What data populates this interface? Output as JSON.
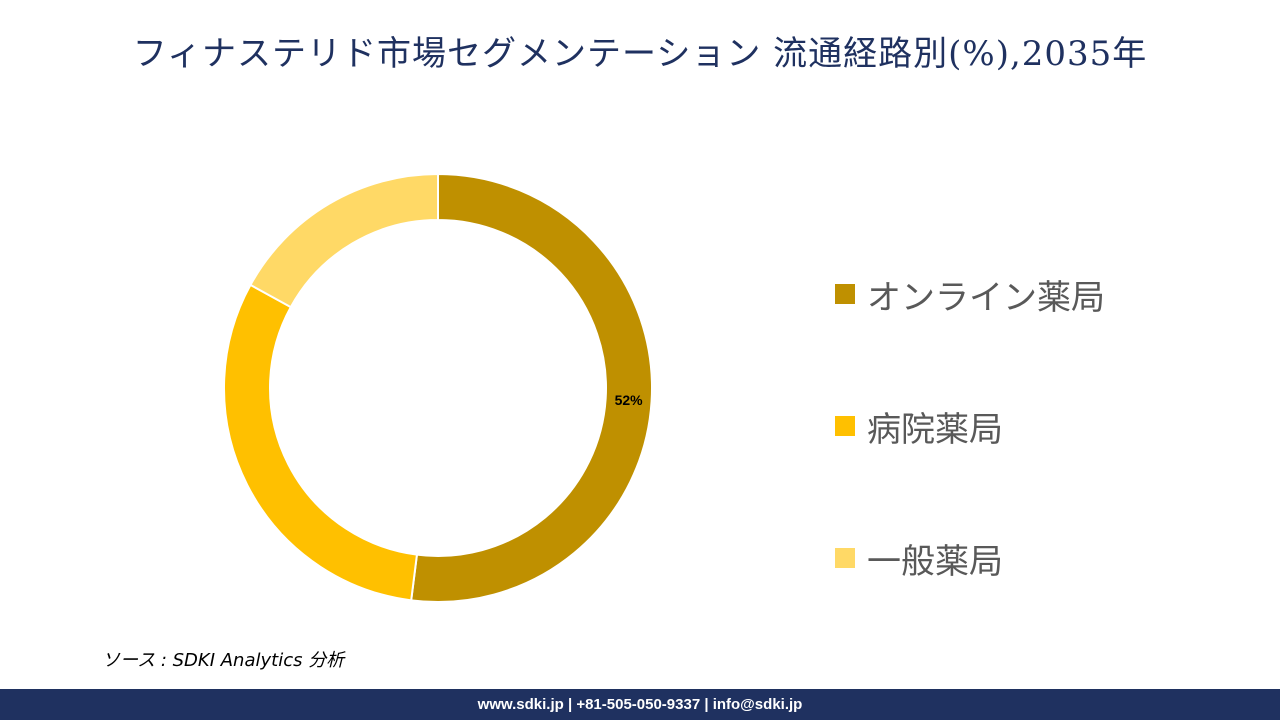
{
  "header": {
    "title": "フィナステリド市場セグメンテーション 流通経路別(%),2035年"
  },
  "chart_data": {
    "type": "pie",
    "style": "donut",
    "categories": [
      "オンライン薬局",
      "病院薬局",
      "一般薬局"
    ],
    "values": [
      52,
      31,
      17
    ],
    "colors": [
      "#bf9000",
      "#ffc000",
      "#ffd966"
    ],
    "data_labels": [
      "52%",
      "",
      ""
    ],
    "legend_position": "right"
  },
  "source": {
    "text": "ソース : SDKI Analytics 分析"
  },
  "footer": {
    "text": "www.sdki.jp | +81-505-050-9337 | info@sdki.jp"
  }
}
